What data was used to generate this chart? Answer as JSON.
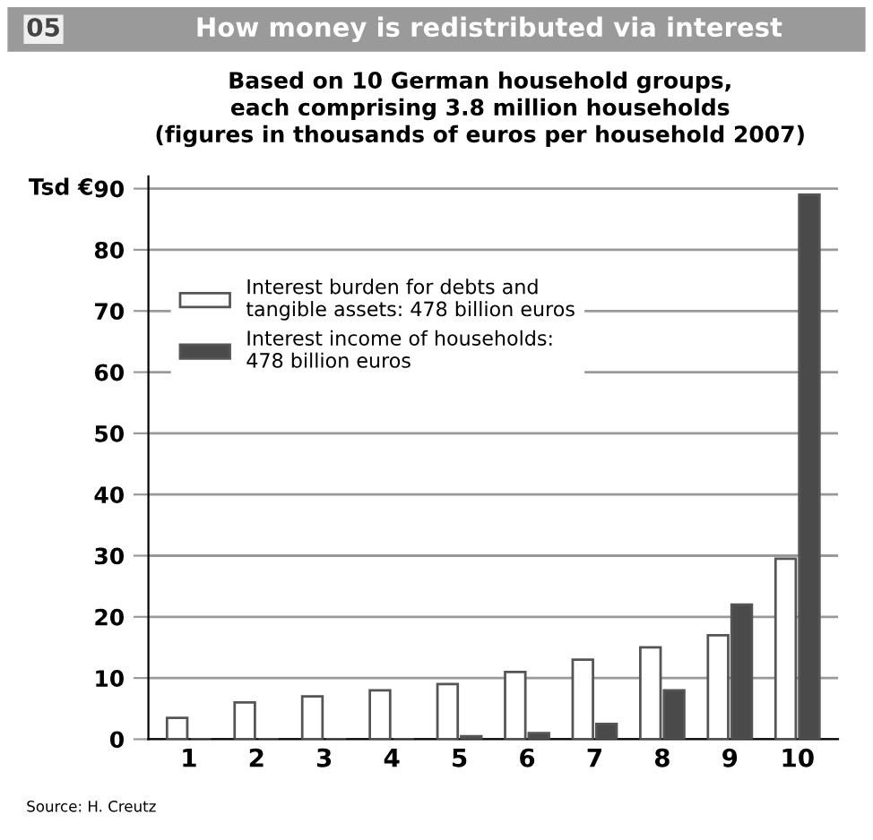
{
  "chart_data": {
    "type": "bar",
    "title": "How money is redistributed via interest",
    "subtitle": "Based on 10 German household groups,\neach comprising 3.8 million households\n(figures in thousands of euros per household 2007)",
    "ylabel": "Tsd €",
    "categories": [
      "1",
      "2",
      "3",
      "4",
      "5",
      "6",
      "7",
      "8",
      "9",
      "10"
    ],
    "series": [
      {
        "name": "Interest burden for debts and\ntangible assets: 478 billion euros",
        "color": "#ffffff",
        "values": [
          3.5,
          6,
          7,
          8,
          9,
          11,
          13,
          15,
          17,
          29.5
        ]
      },
      {
        "name": "Interest income of households:\n478 billion euros",
        "color": "#4a4a4a",
        "values": [
          0,
          0,
          0,
          0,
          0.5,
          1,
          2.5,
          8,
          22,
          89
        ]
      }
    ],
    "ylim": [
      0,
      92
    ],
    "yticks": [
      0,
      10,
      20,
      30,
      40,
      50,
      60,
      70,
      80,
      90
    ],
    "grid": "y",
    "legend": "top left",
    "annotations": [
      "05",
      "Source: H. Creutz"
    ]
  }
}
